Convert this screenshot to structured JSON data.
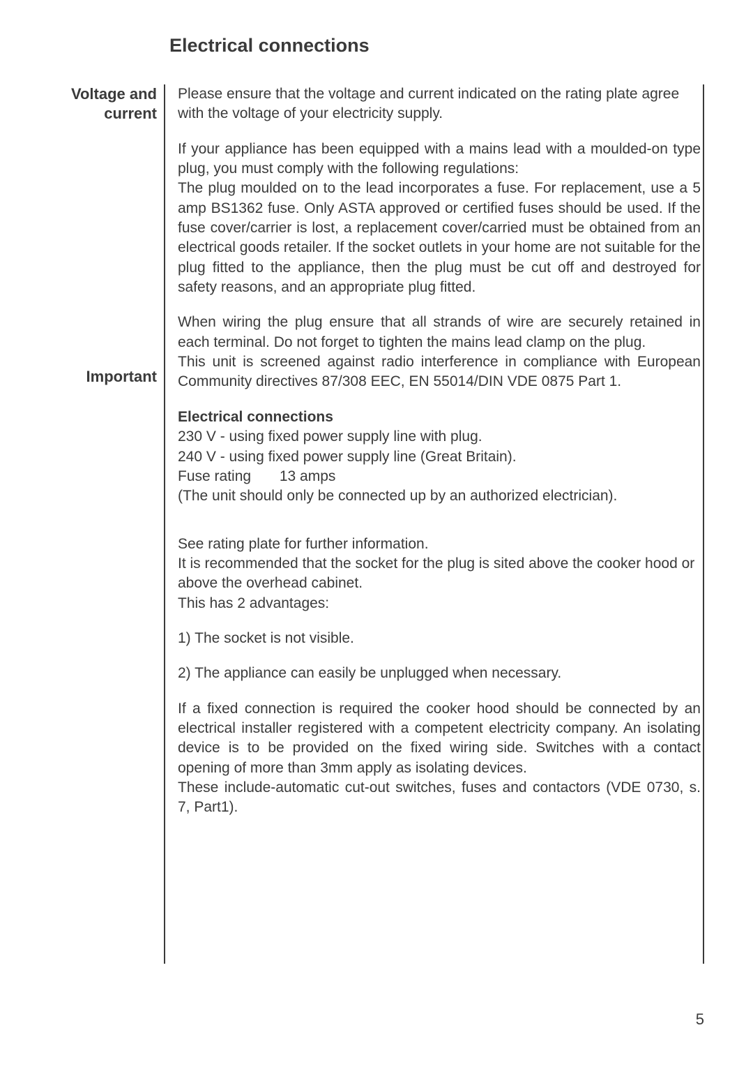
{
  "page": {
    "title": "Electrical connections",
    "page_number": "5",
    "background_color": "#ffffff",
    "text_color": "#3a3a3a",
    "title_fontsize": 27,
    "body_fontsize": 21,
    "sidebar_fontsize": 22
  },
  "sidebar": {
    "label1_line1": "Voltage and",
    "label1_line2": "current",
    "label2": "Important"
  },
  "content": {
    "p1": "Please ensure that the voltage and current indicated on the rating plate agree with the voltage of your electricity supply.",
    "p2a": "If your appliance has been equipped with a mains lead with a moulded-on type plug, you must comply with the following regulations:",
    "p2b": "The plug moulded on to the lead incorporates a fuse. For replacement, use a 5 amp BS1362 fuse. Only ASTA approved or certified fuses should be used. If the fuse cover/carrier is lost, a replacement cover/carried must be obtained from an electrical goods retailer. If the socket outlets in your home are not suitable for the plug fitted to the appliance, then the plug must be cut off and destroyed for safety reasons, and an appropriate plug fitted.",
    "p3a": "When wiring the plug ensure that all strands of wire are securely retained in each terminal. Do not forget to tighten the mains lead clamp on the plug.",
    "p3b": "This unit is screened against radio interference in compliance with European Community directives 87/308 EEC, EN 55014/DIN VDE 0875 Part 1.",
    "sub1": "Electrical connections",
    "p4a": "230 V - using fixed power supply line with plug.",
    "p4b": "240 V - using fixed power supply line (Great Britain).",
    "fuse_label": "Fuse rating",
    "fuse_value": "13 amps",
    "p4d": "(The unit should only be connected up by an authorized electrician).",
    "p5a": "See rating plate for further information.",
    "p5b": "It is recommended that the socket for the plug is sited above the cooker hood or above the overhead cabinet.",
    "p5c": "This has 2 advantages:",
    "p6": "1) The socket is not visible.",
    "p7": "2) The appliance can easily be unplugged when necessary.",
    "p8a": "If a fixed connection is required the cooker hood should be connected by an electrical installer registered with a competent electricity company. An isolating device is to be provided on the fixed wiring side. Switches with a contact opening of more than 3mm apply as isolating devices.",
    "p8b": "These include-automatic cut-out switches, fuses and contactors (VDE 0730, s. 7, Part1)."
  }
}
